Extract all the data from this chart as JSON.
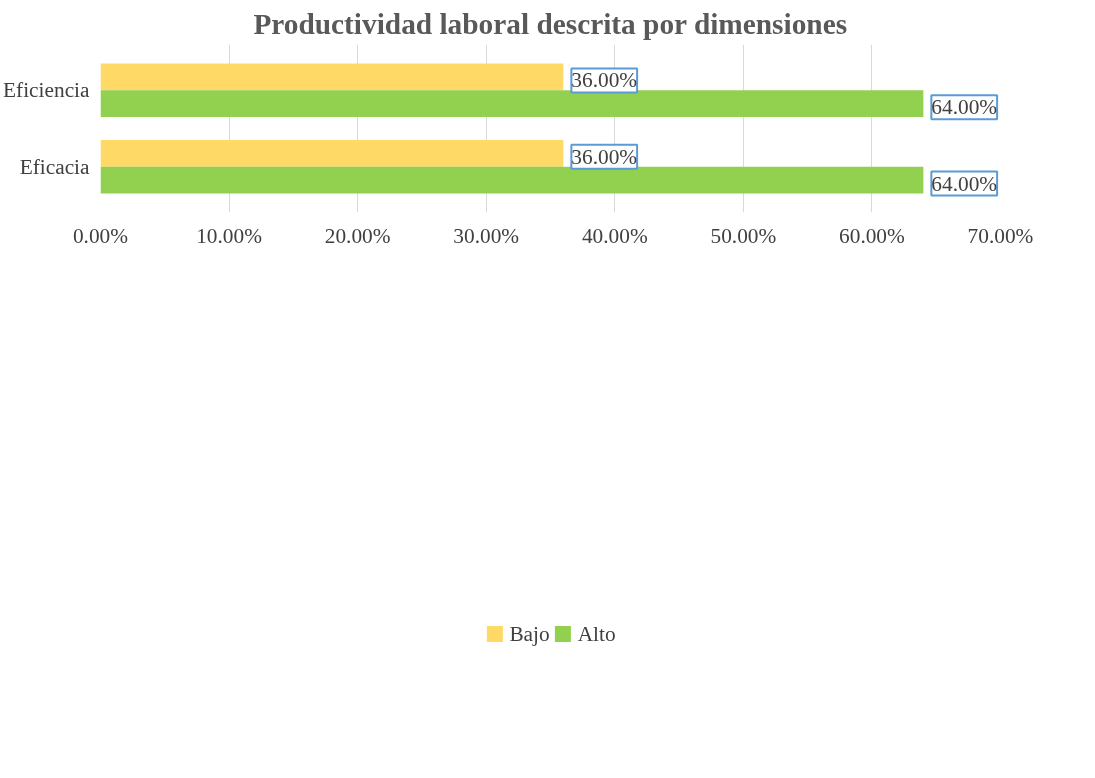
{
  "chart_data": {
    "type": "bar",
    "orientation": "horizontal",
    "title": "Productividad laboral descrita por dimensiones",
    "categories": [
      "Eficiencia",
      "Eficacia"
    ],
    "series": [
      {
        "name": "Bajo",
        "color": "#ffd966",
        "values": [
          36,
          36
        ],
        "value_labels": [
          "36.00%",
          "36.00%"
        ]
      },
      {
        "name": "Alto",
        "color": "#92d050",
        "values": [
          64,
          64
        ],
        "value_labels": [
          "64.00%",
          "64.00%"
        ]
      }
    ],
    "xlim": [
      0,
      70
    ],
    "xticks": [
      {
        "value": 0,
        "label": "0.00%"
      },
      {
        "value": 10,
        "label": "10.00%"
      },
      {
        "value": 20,
        "label": "20.00%"
      },
      {
        "value": 30,
        "label": "30.00%"
      },
      {
        "value": 40,
        "label": "40.00%"
      },
      {
        "value": 50,
        "label": "50.00%"
      },
      {
        "value": 60,
        "label": "60.00%"
      },
      {
        "value": 70,
        "label": "70.00%"
      }
    ],
    "grid": "x",
    "legend": "bottom"
  }
}
